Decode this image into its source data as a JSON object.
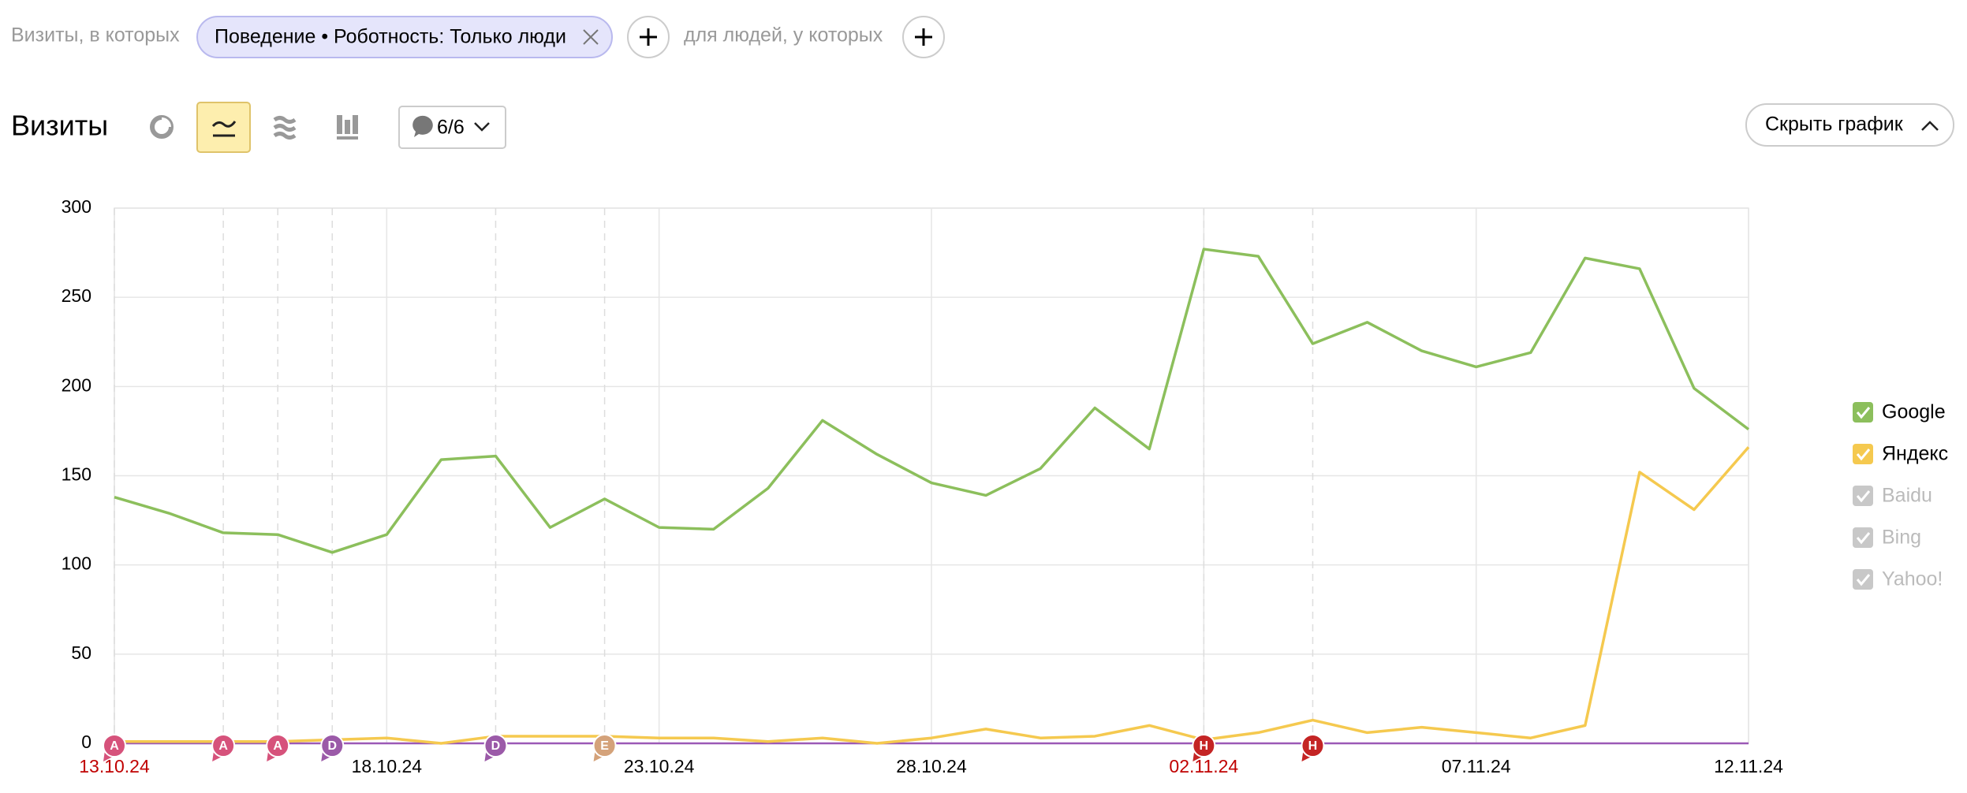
{
  "filter": {
    "label": "Визиты, в которых",
    "chip": "Поведение • Роботность: Только люди",
    "label2": "для людей, у которых"
  },
  "header": {
    "title": "Визиты",
    "annotations_button": "6/6",
    "hide_button": "Скрыть график"
  },
  "chart_data": {
    "type": "line",
    "categories": [
      "13.10.24",
      null,
      null,
      null,
      null,
      "18.10.24",
      null,
      null,
      null,
      null,
      "23.10.24",
      null,
      null,
      null,
      null,
      "28.10.24",
      null,
      null,
      null,
      null,
      "02.11.24",
      null,
      null,
      null,
      null,
      "07.11.24",
      null,
      null,
      null,
      null,
      "12.11.24"
    ],
    "red_labels": [
      "13.10.24",
      "02.11.24"
    ],
    "series": [
      {
        "name": "Google",
        "color": "#8cbf5c",
        "values": [
          138,
          129,
          118,
          117,
          107,
          117,
          159,
          161,
          121,
          137,
          121,
          120,
          143,
          181,
          162,
          146,
          139,
          154,
          188,
          165,
          277,
          273,
          224,
          236,
          220,
          211,
          219,
          272,
          266,
          199,
          176
        ]
      },
      {
        "name": "Яндекс",
        "color": "#f5c94f",
        "values": [
          1,
          1,
          1,
          1,
          2,
          3,
          0,
          4,
          4,
          4,
          3,
          3,
          1,
          3,
          0,
          3,
          8,
          3,
          4,
          10,
          2,
          6,
          13,
          6,
          9,
          6,
          3,
          10,
          152,
          131,
          166
        ]
      }
    ],
    "disabled_series": [
      "Baidu",
      "Bing",
      "Yahoo!"
    ],
    "ylim": [
      0,
      300
    ],
    "yticks": [
      0,
      50,
      100,
      150,
      200,
      250,
      300
    ],
    "grid": true,
    "annotations": [
      {
        "x": 0,
        "label": "A",
        "color": "#d6527b"
      },
      {
        "x": 2,
        "label": "A",
        "color": "#d6527b"
      },
      {
        "x": 3,
        "label": "A",
        "color": "#d6527b"
      },
      {
        "x": 4,
        "label": "D",
        "color": "#9b5aa8"
      },
      {
        "x": 7,
        "label": "D",
        "color": "#9b5aa8"
      },
      {
        "x": 9,
        "label": "E",
        "color": "#d4a27a"
      },
      {
        "x": 20,
        "label": "H",
        "color": "#c42424"
      },
      {
        "x": 22,
        "label": "H",
        "color": "#c42424"
      }
    ]
  }
}
